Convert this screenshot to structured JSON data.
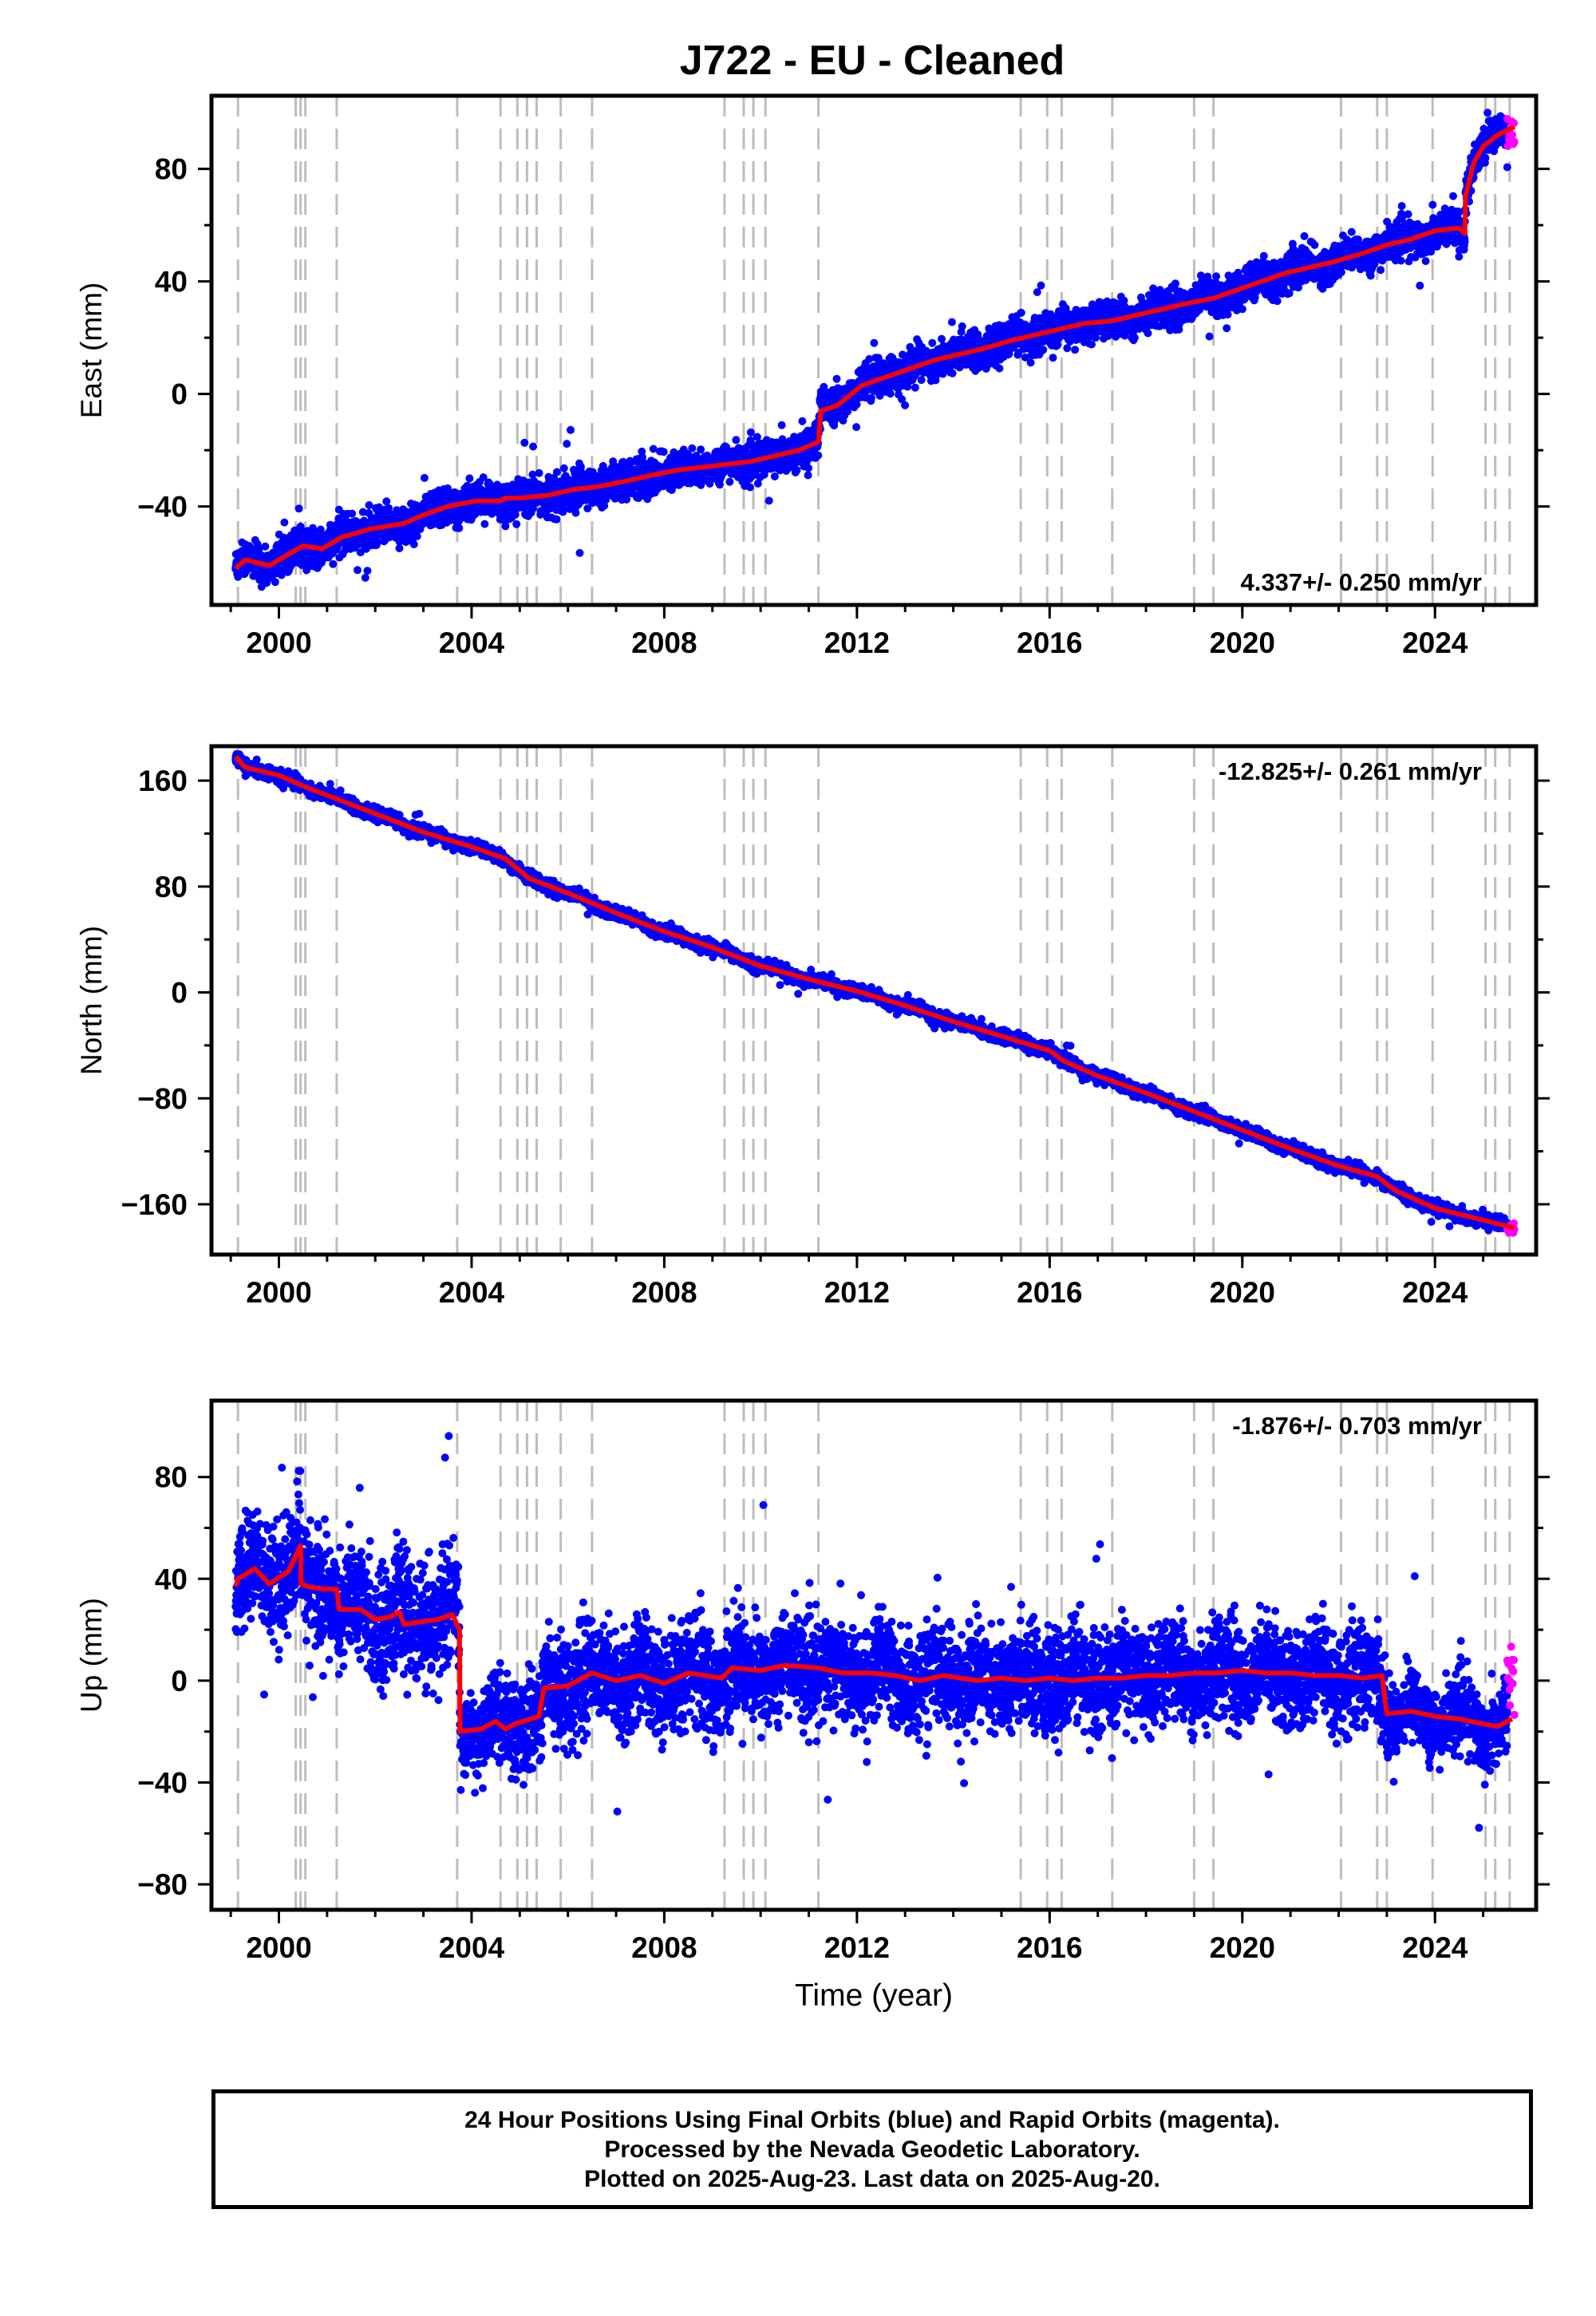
{
  "title": "J722  - EU - Cleaned",
  "colors": {
    "final_orbits": "#0000ff",
    "rapid_orbits": "#ff00ff",
    "model": "#ff0000",
    "event_lines": "#bdbdbd",
    "frame": "#000000"
  },
  "chart_data": [
    {
      "type": "scatter",
      "component": "east",
      "ylabel": "East (mm)",
      "xlabel": "",
      "xlim": [
        1998.6,
        2026.1
      ],
      "ylim": [
        -75,
        106
      ],
      "xticks": [
        2000,
        2004,
        2008,
        2012,
        2016,
        2020,
        2024
      ],
      "xtick_labels": [
        "2000",
        "2004",
        "2008",
        "2012",
        "2016",
        "2020",
        "2024"
      ],
      "yticks": [
        -40,
        0,
        40,
        80
      ],
      "ytick_labels": [
        "−40",
        "0",
        "40",
        "80"
      ],
      "rate_label": "4.337+/- 0.250 mm/yr",
      "rate_position": "bottom-right",
      "model": {
        "x": [
          1999.1,
          1999.3,
          1999.8,
          2000.3,
          2000.5,
          2000.9,
          2001.3,
          2001.9,
          2002.6,
          2003.0,
          2003.5,
          2004.1,
          2004.6,
          2004.7,
          2005.0,
          2005.6,
          2006.1,
          2006.6,
          2007.2,
          2007.7,
          2008.3,
          2008.8,
          2009.3,
          2009.8,
          2010.3,
          2010.8,
          2011.2,
          2011.25,
          2011.6,
          2012.1,
          2012.6,
          2013.1,
          2013.6,
          2014.1,
          2014.6,
          2015.2,
          2015.7,
          2016.2,
          2016.7,
          2017.3,
          2017.8,
          2018.3,
          2018.8,
          2019.4,
          2019.9,
          2020.4,
          2020.9,
          2021.4,
          2021.9,
          2022.5,
          2023.0,
          2023.5,
          2024.0,
          2024.5,
          2024.62,
          2024.63,
          2024.8,
          2025.0,
          2025.3,
          2025.65
        ],
        "y": [
          -62,
          -59,
          -61,
          -56,
          -54,
          -55,
          -51,
          -48,
          -46,
          -43,
          -40,
          -38,
          -38,
          -37,
          -37,
          -36,
          -34,
          -33,
          -31,
          -29,
          -27,
          -26,
          -25,
          -24,
          -22,
          -20,
          -17,
          -6,
          -4,
          3,
          6,
          9,
          12,
          14,
          16,
          19,
          21,
          23,
          25,
          26,
          28,
          30,
          32,
          34,
          37,
          40,
          43,
          45,
          47,
          50,
          53,
          55,
          58,
          59,
          57,
          70,
          82,
          88,
          92,
          95
        ]
      },
      "points": {
        "count": 6800,
        "noise_mm": 3.0,
        "outlier_fraction": 0.004
      },
      "rapid_points": {
        "x_start": 2025.5,
        "x_end": 2025.65,
        "y": [
          88,
          99
        ]
      }
    },
    {
      "type": "scatter",
      "component": "north",
      "ylabel": "North (mm)",
      "xlabel": "",
      "xlim": [
        1998.6,
        2026.1
      ],
      "ylim": [
        -198,
        186
      ],
      "xticks": [
        2000,
        2004,
        2008,
        2012,
        2016,
        2020,
        2024
      ],
      "xtick_labels": [
        "2000",
        "2004",
        "2008",
        "2012",
        "2016",
        "2020",
        "2024"
      ],
      "yticks": [
        -160,
        -80,
        0,
        80,
        160
      ],
      "ytick_labels": [
        "−160",
        "−80",
        "0",
        "80",
        "160"
      ],
      "rate_label": "-12.825+/- 0.261 mm/yr",
      "rate_position": "top-right",
      "model": {
        "x": [
          1999.1,
          1999.3,
          2000.0,
          2000.5,
          2001.0,
          2002.0,
          2003.0,
          2004.0,
          2004.7,
          2005.2,
          2006.0,
          2007.0,
          2008.0,
          2009.0,
          2010.0,
          2011.0,
          2012.0,
          2013.0,
          2014.0,
          2015.0,
          2016.0,
          2016.3,
          2017.0,
          2018.0,
          2019.0,
          2020.0,
          2021.0,
          2022.0,
          2022.8,
          2023.0,
          2023.2,
          2024.0,
          2025.0,
          2025.65
        ],
        "y": [
          178,
          170,
          164,
          156,
          149,
          135,
          121,
          110,
          101,
          86,
          75,
          60,
          46,
          34,
          20,
          10,
          1,
          -10,
          -22,
          -33,
          -44,
          -52,
          -63,
          -76,
          -90,
          -104,
          -118,
          -131,
          -139,
          -145,
          -150,
          -163,
          -172,
          -178
        ]
      },
      "points": {
        "count": 6800,
        "noise_mm": 2.2,
        "outlier_fraction": 0.002
      },
      "rapid_points": {
        "x_start": 2025.5,
        "x_end": 2025.65,
        "y": [
          -182,
          -174
        ]
      }
    },
    {
      "type": "scatter",
      "component": "up",
      "ylabel": "Up (mm)",
      "xlabel": "Time (year)",
      "xlim": [
        1998.6,
        2026.1
      ],
      "ylim": [
        -90,
        110
      ],
      "xticks": [
        2000,
        2004,
        2008,
        2012,
        2016,
        2020,
        2024
      ],
      "xtick_labels": [
        "2000",
        "2004",
        "2008",
        "2012",
        "2016",
        "2020",
        "2024"
      ],
      "yticks": [
        -80,
        -40,
        0,
        40,
        80
      ],
      "ytick_labels": [
        "−80",
        "−40",
        "0",
        "40",
        "80"
      ],
      "rate_label": "-1.876+/- 0.703 mm/yr",
      "rate_position": "top-right",
      "model": {
        "x": [
          1999.1,
          1999.15,
          1999.5,
          1999.8,
          2000.2,
          2000.45,
          2000.46,
          2000.6,
          2000.9,
          2001.2,
          2001.25,
          2001.7,
          2002.0,
          2002.3,
          2002.5,
          2002.6,
          2002.9,
          2003.3,
          2003.6,
          2003.75,
          2003.76,
          2004.2,
          2004.5,
          2004.7,
          2004.9,
          2005.4,
          2005.5,
          2006.0,
          2006.5,
          2007.0,
          2007.5,
          2008.0,
          2008.5,
          2009.2,
          2009.4,
          2010.0,
          2010.5,
          2011.2,
          2011.7,
          2012.3,
          2012.8,
          2013.3,
          2013.8,
          2014.5,
          2015.0,
          2015.5,
          2016.0,
          2016.5,
          2017.0,
          2017.5,
          2018.0,
          2018.5,
          2019.0,
          2019.5,
          2020.0,
          2020.5,
          2021.0,
          2021.5,
          2022.0,
          2022.5,
          2022.9,
          2023.0,
          2023.5,
          2024.0,
          2024.5,
          2025.0,
          2025.3,
          2025.6
        ],
        "y": [
          37,
          40,
          44,
          38,
          43,
          53,
          38,
          37,
          36,
          36,
          28,
          28,
          24,
          25,
          27,
          22,
          23,
          24,
          26,
          20,
          -20,
          -19,
          -16,
          -19,
          -17,
          -14,
          -3,
          -2,
          3,
          0,
          2,
          -1,
          3,
          1,
          5,
          4,
          6,
          5,
          3,
          3,
          2,
          0,
          2,
          0,
          1,
          0,
          1,
          0,
          1,
          1,
          2,
          2,
          3,
          3,
          4,
          3,
          3,
          2,
          2,
          1,
          2,
          -13,
          -12,
          -14,
          -15,
          -17,
          -18,
          -15
        ],
        "noise_x": [
          1999.1,
          2003.75,
          2003.76,
          2005.5,
          2022.95,
          2023.0,
          2025.65
        ],
        "noise_y": [
          11,
          11,
          7,
          10,
          9,
          7,
          7
        ]
      },
      "points": {
        "count": 6800,
        "outlier_fraction": 0.003
      },
      "rapid_points": {
        "x_start": 2025.5,
        "x_end": 2025.65,
        "y": [
          -14,
          14
        ]
      }
    }
  ],
  "event_lines_years": [
    1999.15,
    2000.35,
    2000.45,
    2000.55,
    2001.2,
    2003.7,
    2004.6,
    2004.95,
    2005.15,
    2005.35,
    2005.85,
    2006.5,
    2009.25,
    2009.65,
    2009.85,
    2010.1,
    2011.2,
    2015.4,
    2015.95,
    2016.25,
    2017.3,
    2019.0,
    2019.4,
    2022.05,
    2022.8,
    2023.0,
    2023.95,
    2025.05,
    2025.25,
    2025.55
  ],
  "footer": {
    "line1": "24 Hour Positions Using Final Orbits (blue) and Rapid Orbits (magenta).",
    "line2": "Processed by the Nevada Geodetic Laboratory.",
    "line3": "Plotted on 2025-Aug-23. Last data on 2025-Aug-20."
  }
}
